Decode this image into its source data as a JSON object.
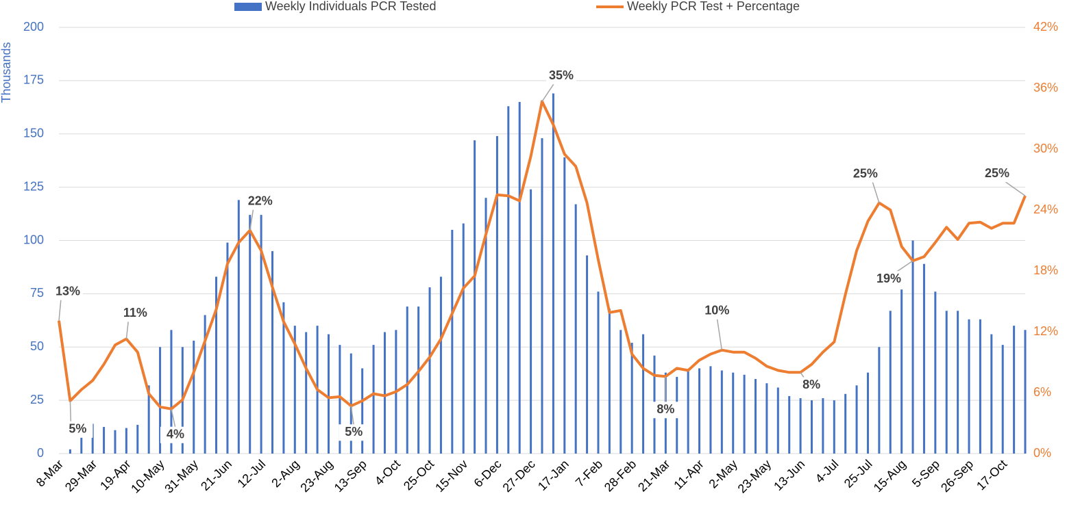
{
  "chart_data": {
    "type": "combo",
    "y_label": "Thousands",
    "categories": [
      "8-Mar",
      null,
      null,
      "29-Mar",
      null,
      null,
      "19-Apr",
      null,
      null,
      "10-May",
      null,
      null,
      "31-May",
      null,
      null,
      "21-Jun",
      null,
      null,
      "12-Jul",
      null,
      null,
      "2-Aug",
      null,
      null,
      "23-Aug",
      null,
      null,
      "13-Sep",
      null,
      null,
      "4-Oct",
      null,
      null,
      "25-Oct",
      null,
      null,
      "15-Nov",
      null,
      null,
      "6-Dec",
      null,
      null,
      "27-Dec",
      null,
      null,
      "17-Jan",
      null,
      null,
      "7-Feb",
      null,
      null,
      "28-Feb",
      null,
      null,
      "21-Mar",
      null,
      null,
      "11-Apr",
      null,
      null,
      "2-May",
      null,
      null,
      "23-May",
      null,
      null,
      "13-Jun",
      null,
      null,
      "4-Jul",
      null,
      null,
      "25-Jul",
      null,
      null,
      "15-Aug",
      null,
      null,
      "5-Sep",
      null,
      null,
      "26-Sep",
      null,
      null,
      "17-Oct",
      null,
      null
    ],
    "series": [
      {
        "name": "Weekly Individuals PCR Tested",
        "type": "bar",
        "color": "#4472c4",
        "values": [
          0,
          2,
          8,
          14,
          12.5,
          11,
          12,
          13.5,
          32,
          50,
          58,
          50,
          53,
          65,
          83,
          99,
          119,
          112,
          112,
          95,
          71,
          60,
          57,
          60,
          56,
          51,
          47,
          40,
          51,
          57,
          58,
          69,
          69,
          78,
          83,
          105,
          108,
          147,
          120,
          149,
          163,
          165,
          124,
          148,
          169,
          139,
          117,
          93,
          76,
          68,
          58,
          52,
          56,
          46,
          38,
          36,
          39,
          40,
          41,
          39,
          38,
          37,
          35,
          33,
          31,
          27,
          26,
          25,
          26,
          25,
          28,
          32,
          38,
          50,
          67,
          77,
          100,
          89,
          76,
          67,
          67,
          63,
          63,
          56,
          51,
          60,
          58
        ]
      },
      {
        "name": "Weekly PCR Test + Percentage",
        "type": "line",
        "axis": "y2",
        "color": "#ed7d31",
        "values": [
          13.1,
          5.2,
          6.3,
          7.2,
          8.8,
          10.7,
          11.3,
          10.0,
          5.9,
          4.6,
          4.4,
          5.3,
          8.0,
          11.1,
          14.2,
          18.7,
          20.8,
          22.0,
          20.0,
          16.4,
          13.0,
          10.8,
          8.4,
          6.3,
          5.5,
          5.6,
          4.7,
          5.2,
          5.9,
          5.7,
          6.1,
          6.8,
          8.1,
          9.5,
          11.3,
          13.8,
          16.3,
          17.5,
          21.6,
          25.5,
          25.4,
          24.9,
          29.3,
          34.7,
          32.4,
          29.5,
          28.3,
          24.7,
          19.1,
          13.9,
          14.1,
          9.8,
          8.4,
          7.7,
          7.6,
          8.4,
          8.2,
          9.2,
          9.8,
          10.2,
          10.0,
          10.0,
          9.4,
          8.6,
          8.2,
          8.0,
          8.0,
          8.8,
          10.0,
          11.0,
          15.7,
          20.0,
          22.9,
          24.7,
          24.0,
          20.4,
          19.0,
          19.4,
          20.8,
          22.3,
          21.1,
          22.7,
          22.8,
          22.2,
          22.7,
          22.7,
          25.4
        ],
        "value_labels": [
          "13%",
          "5%",
          null,
          null,
          null,
          null,
          "11%",
          null,
          null,
          null,
          "4%",
          null,
          null,
          null,
          null,
          null,
          null,
          "22%",
          null,
          null,
          null,
          null,
          null,
          null,
          null,
          null,
          "5%",
          null,
          null,
          null,
          null,
          null,
          null,
          null,
          null,
          null,
          null,
          null,
          null,
          null,
          null,
          null,
          null,
          "35%",
          null,
          null,
          null,
          null,
          null,
          null,
          null,
          null,
          null,
          null,
          "8%",
          null,
          null,
          null,
          null,
          "10%",
          null,
          null,
          null,
          null,
          null,
          null,
          "8%",
          null,
          null,
          null,
          null,
          null,
          null,
          "25%",
          null,
          null,
          "19%",
          null,
          null,
          null,
          null,
          null,
          null,
          null,
          null,
          null,
          "25%"
        ]
      }
    ],
    "ylim": [
      0,
      200
    ],
    "yticks": [
      0,
      25,
      50,
      75,
      100,
      125,
      150,
      175,
      200
    ],
    "y2lim": [
      0,
      42
    ],
    "y2ticks": [
      {
        "value": 0,
        "label": "0%"
      },
      {
        "value": 6,
        "label": "6%"
      },
      {
        "value": 12,
        "label": "12%"
      },
      {
        "value": 18,
        "label": "18%"
      },
      {
        "value": 24,
        "label": "24%"
      },
      {
        "value": 30,
        "label": "30%"
      },
      {
        "value": 36,
        "label": "36%"
      },
      {
        "value": 42,
        "label": "42%"
      }
    ],
    "grid": true,
    "legend": "top"
  }
}
